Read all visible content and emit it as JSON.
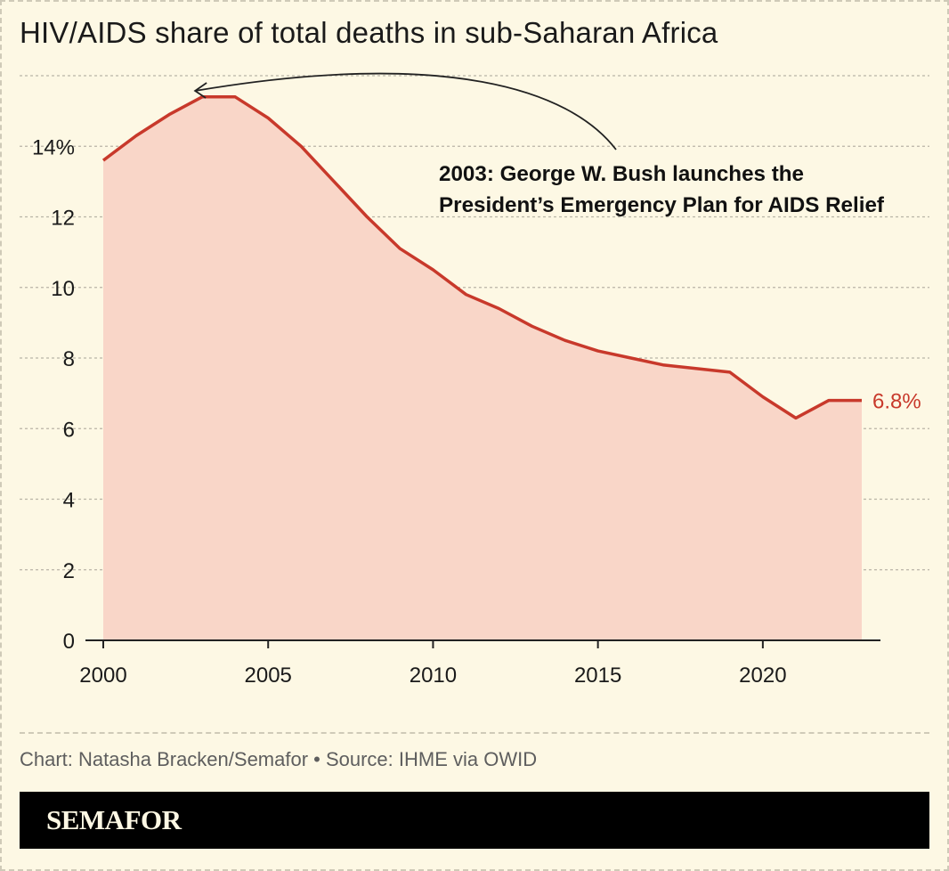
{
  "header": {
    "title": "HIV/AIDS share of total deaths in sub-Saharan Africa"
  },
  "footer": {
    "source": "Chart: Natasha Bracken/Semafor • Source: IHME via OWID",
    "brand": "SEMAFOR"
  },
  "colors": {
    "background": "#fdf8e4",
    "line": "#c8392b",
    "area": "#f9d6c8",
    "grid": "#b9b4a6",
    "text": "#1a1a1a",
    "brand_bar": "#000000"
  },
  "chart_data": {
    "type": "area",
    "title": "HIV/AIDS share of total deaths in sub-Saharan Africa",
    "xlabel": "",
    "ylabel": "",
    "xlim": [
      2000,
      2023
    ],
    "ylim": [
      0,
      16
    ],
    "grid": true,
    "x_ticks": [
      {
        "value": 2000,
        "label": "2000"
      },
      {
        "value": 2005,
        "label": "2005"
      },
      {
        "value": 2010,
        "label": "2010"
      },
      {
        "value": 2015,
        "label": "2015"
      },
      {
        "value": 2020,
        "label": "2020"
      }
    ],
    "y_ticks": [
      {
        "value": 0,
        "label": "0"
      },
      {
        "value": 2,
        "label": "2"
      },
      {
        "value": 4,
        "label": "4"
      },
      {
        "value": 6,
        "label": "6"
      },
      {
        "value": 8,
        "label": "8"
      },
      {
        "value": 10,
        "label": "10"
      },
      {
        "value": 12,
        "label": "12"
      },
      {
        "value": 14,
        "label": "14%"
      }
    ],
    "series": [
      {
        "x": [
          2000,
          2001,
          2002,
          2003,
          2004,
          2005,
          2006,
          2007,
          2008,
          2009,
          2010,
          2011,
          2012,
          2013,
          2014,
          2015,
          2016,
          2017,
          2018,
          2019,
          2020,
          2021,
          2022,
          2023
        ],
        "values": [
          13.6,
          14.3,
          14.9,
          15.4,
          15.4,
          14.8,
          14.0,
          13.0,
          12.0,
          11.1,
          10.5,
          9.8,
          9.4,
          8.9,
          8.5,
          8.2,
          8.0,
          7.8,
          7.7,
          7.6,
          6.9,
          6.3,
          6.8,
          6.8
        ]
      }
    ],
    "end_label": "6.8%",
    "annotation": {
      "x": 2003,
      "lines": [
        "2003: George W. Bush launches the",
        "President’s Emergency Plan for AIDS Relief"
      ]
    }
  }
}
